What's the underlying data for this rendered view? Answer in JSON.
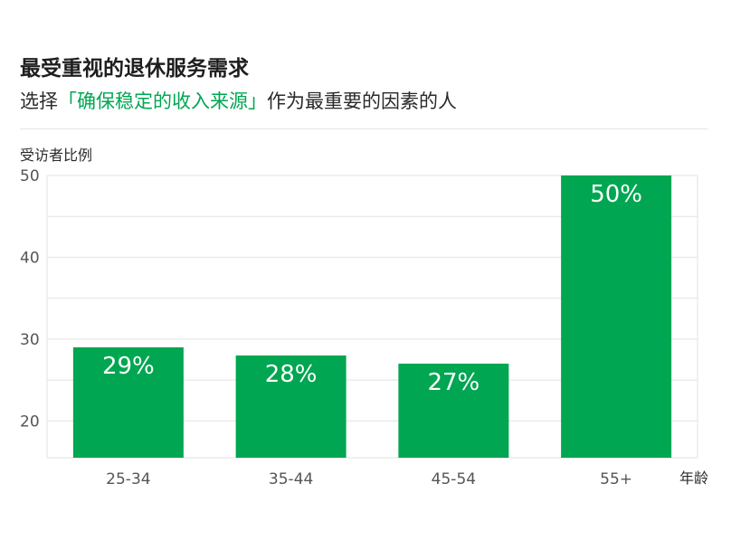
{
  "header": {
    "title": "最受重视的退休服务需求",
    "subtitle_prefix": "选择",
    "subtitle_highlight": "「确保稳定的收入来源」",
    "subtitle_suffix": "作为最重要的因素的人"
  },
  "colors": {
    "bar": "#00a651",
    "highlight": "#00a651",
    "grid": "#e2e2e2"
  },
  "chart_data": {
    "type": "bar",
    "title": "最受重视的退休服务需求",
    "subtitle": "选择「确保稳定的收入来源」作为最重要的因素的人",
    "ylabel": "受访者比例",
    "xlabel": "年龄",
    "categories": [
      "25-34",
      "35-44",
      "45-54",
      "55+"
    ],
    "values": [
      29,
      28,
      27,
      50
    ],
    "data_labels": [
      "29%",
      "28%",
      "27%",
      "50%"
    ],
    "yticks": [
      20,
      30,
      40,
      50
    ],
    "ylim": [
      15.5,
      50
    ],
    "grid": true,
    "legend": false
  }
}
